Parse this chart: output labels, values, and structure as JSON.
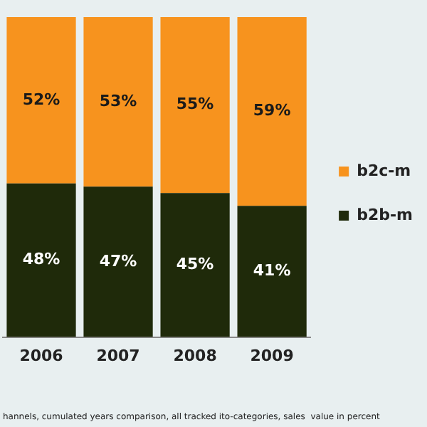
{
  "chart_data": {
    "type": "bar",
    "stacked": true,
    "categories": [
      "2006",
      "2007",
      "2008",
      "2009"
    ],
    "series": [
      {
        "name": "b2b-m",
        "color": "#1f2a0a",
        "values": [
          48,
          47,
          45,
          41
        ],
        "value_labels": [
          "48%",
          "47%",
          "45%",
          "41%"
        ]
      },
      {
        "name": "b2c-m",
        "color": "#f7931e",
        "values": [
          52,
          53,
          55,
          59
        ],
        "value_labels": [
          "52%",
          "53%",
          "55%",
          "59%"
        ]
      }
    ],
    "grid": false,
    "legend": "right",
    "tick_labels": "x",
    "annotations": [
      "hannels, cumulated years comparison, all tracked ito-categories, sales  value in percent"
    ]
  }
}
